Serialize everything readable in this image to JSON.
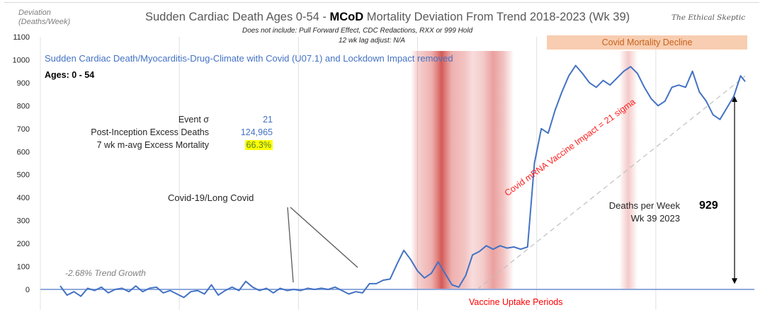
{
  "chart_data": {
    "type": "line",
    "title": "Sudden Cardiac Death Ages 0-54 - MCoD Mortality Deviation From Trend 2018-2023 (Wk 39)",
    "title_parts": {
      "pre": "Sudden Cardiac Death Ages 0-54 - ",
      "bold": "MCoD",
      "post": " Mortality Deviation From Trend  2018-2023 (Wk 39)"
    },
    "brand": "The Ethical Skeptic",
    "ylabel": "Deviation (Deaths/Week)",
    "ylabel_line1": "Deviation",
    "ylabel_line2": "(Deaths/Week)",
    "xlabel": "",
    "ylim": [
      0,
      1100
    ],
    "yticks": [
      0,
      100,
      200,
      300,
      400,
      500,
      600,
      700,
      800,
      900,
      1000,
      1100
    ],
    "x_range_weeks": [
      0,
      300
    ],
    "year_boundaries_weeks": [
      52,
      104,
      156,
      208,
      260
    ],
    "notes": {
      "line1": "Does not include: Pull Forward Effect,  CDC Redactions, RXX or 999 Hold",
      "line2": "12 wk lag adjust: N/A"
    },
    "series": [
      {
        "name": "Sudden Cardiac Death/Myocarditis-Drug-Climate with Covid (U07.1) and Lockdown Impact removed",
        "color": "#4472c4",
        "x_week": [
          0,
          3,
          6,
          9,
          12,
          15,
          18,
          21,
          24,
          27,
          30,
          33,
          36,
          39,
          42,
          45,
          48,
          51,
          54,
          57,
          60,
          63,
          66,
          69,
          72,
          75,
          78,
          81,
          84,
          87,
          90,
          93,
          96,
          99,
          102,
          105,
          108,
          111,
          114,
          117,
          120,
          123,
          126,
          129,
          132,
          135,
          138,
          141,
          144,
          147,
          150,
          153,
          156,
          159,
          162,
          165,
          168,
          171,
          174,
          177,
          180,
          183,
          186,
          189,
          192,
          195,
          198,
          201,
          204,
          207,
          210,
          213,
          216,
          219,
          222,
          225,
          228,
          231,
          234,
          237,
          240,
          243,
          246,
          249,
          252,
          255,
          258,
          261,
          264,
          267,
          270,
          273,
          276,
          279,
          282,
          285,
          288,
          291,
          294,
          297,
          299
        ],
        "values": [
          15,
          -25,
          -10,
          -30,
          5,
          -5,
          10,
          -15,
          0,
          5,
          -10,
          15,
          -10,
          5,
          10,
          -15,
          -5,
          -20,
          -35,
          -10,
          -5,
          -20,
          20,
          -25,
          -5,
          10,
          -5,
          35,
          10,
          -5,
          5,
          -15,
          5,
          -5,
          0,
          -5,
          5,
          0,
          5,
          0,
          10,
          -5,
          -20,
          -10,
          -15,
          25,
          25,
          40,
          45,
          110,
          170,
          130,
          80,
          50,
          70,
          120,
          70,
          20,
          10,
          60,
          150,
          165,
          190,
          175,
          190,
          180,
          185,
          175,
          185,
          550,
          700,
          680,
          780,
          860,
          930,
          975,
          940,
          900,
          880,
          910,
          890,
          920,
          950,
          970,
          940,
          880,
          830,
          800,
          820,
          880,
          890,
          880,
          950,
          860,
          820,
          760,
          740,
          790,
          840,
          930,
          905
        ]
      }
    ],
    "trend_line": {
      "name": "Covid mRNA Vaccine Impact = 21 sigma",
      "from": [
        182,
        0
      ],
      "to": [
        299,
        929
      ],
      "style": "dashed",
      "color": "#bfbfbf"
    },
    "shaded_regions": [
      {
        "name": "Vaccine Uptake Periods",
        "from_week": 153,
        "to_week": 198,
        "color": "#d9534f",
        "peaks_week": [
          169,
          185,
          192
        ]
      },
      {
        "name": "Vaccine Uptake Periods",
        "from_week": 244,
        "to_week": 252,
        "color": "#e8a0a0"
      }
    ],
    "annotations": {
      "subtitle": "Sudden Cardiac Death/Myocarditis-Drug-Climate with Covid (U07.1) and Lockdown Impact removed",
      "ages": "Ages: 0 - 54",
      "covid_decline": "Covid Mortality Decline",
      "covid_label": "Covid-19/Long Covid",
      "trend_growth": "-2.68% Trend Growth",
      "vaccine_uptake": "Vaccine Uptake Periods",
      "vaccine_impact": "Covid mRNA Vaccine Impact = 21 sigma",
      "deaths_per_week_line1": "Deaths per Week",
      "deaths_per_week_line2": "Wk 39 2023",
      "deaths_value": "929"
    },
    "stats": [
      {
        "label": "Event σ",
        "value": "21"
      },
      {
        "label": "Post-Inception Excess Deaths",
        "value": "124,965"
      },
      {
        "label": "7 wk m-avg Excess Mortality",
        "value": "66.3%",
        "highlight": "#ffff00"
      }
    ],
    "grid": {
      "x": true,
      "y": false
    },
    "legend": "none"
  }
}
